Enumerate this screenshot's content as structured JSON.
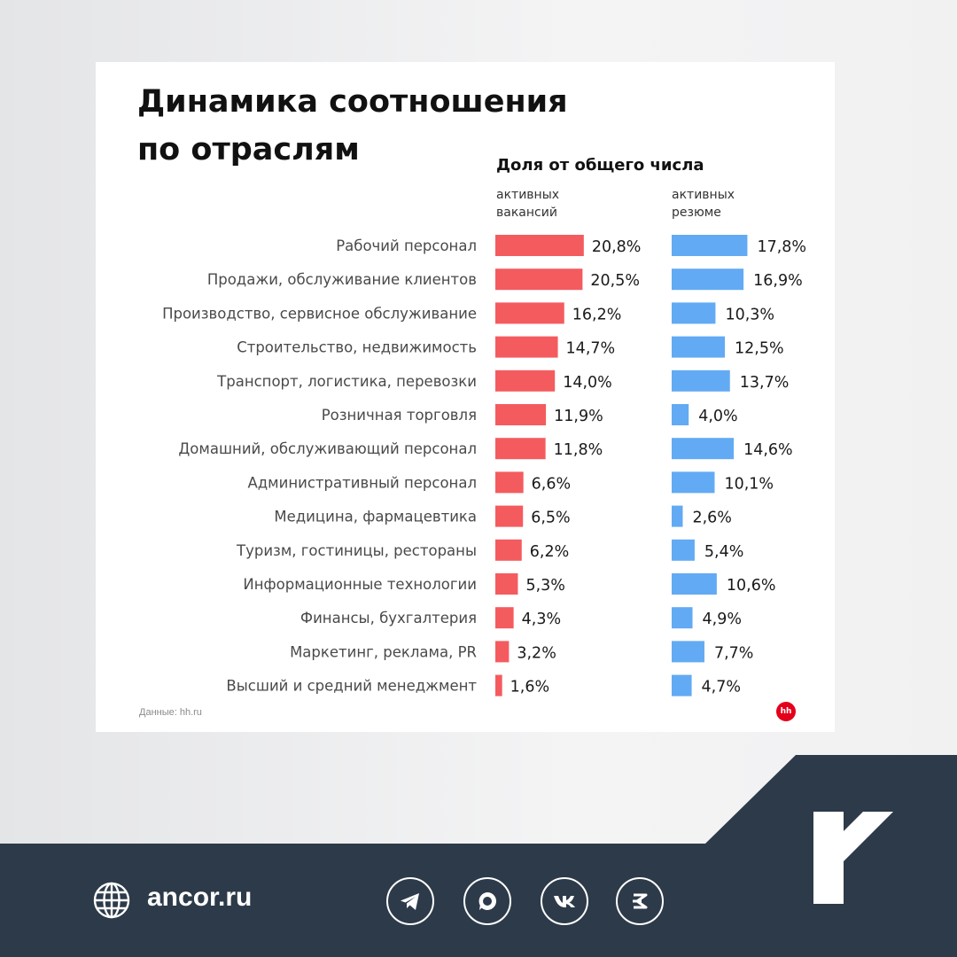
{
  "title_lines": [
    "Динамика соотношения",
    "по отраслям"
  ],
  "subtitle": "Доля от общего числа",
  "columns": {
    "vacancies_label": [
      "активных",
      "вакансий"
    ],
    "resumes_label": [
      "активных",
      "резюме"
    ]
  },
  "source": "Данные: hh.ru",
  "hh_logo_text": "hh",
  "colors": {
    "vacancies": "#f45b5f",
    "resumes": "#62aaf4",
    "footer": "#2d3a49"
  },
  "chart_data": {
    "type": "bar",
    "orientation": "horizontal",
    "categories": [
      "Рабочий персонал",
      "Продажи, обслуживание клиентов",
      "Производство, сервисное обслуживание",
      "Строительство, недвижимость",
      "Транспорт, логистика, перевозки",
      "Розничная торговля",
      "Домашний, обслуживающий персонал",
      "Административный персонал",
      "Медицина, фармацевтика",
      "Туризм, гостиницы, рестораны",
      "Информационные технологии",
      "Финансы, бухгалтерия",
      "Маркетинг, реклама, PR",
      "Высший и средний менеджмент"
    ],
    "series": [
      {
        "name": "активных вакансий",
        "values": [
          20.8,
          20.5,
          16.2,
          14.7,
          14.0,
          11.9,
          11.8,
          6.6,
          6.5,
          6.2,
          5.3,
          4.3,
          3.2,
          1.6
        ],
        "labels": [
          "20,8%",
          "20,5%",
          "16,2%",
          "14,7%",
          "14,0%",
          "11,9%",
          "11,8%",
          "6,6%",
          "6,5%",
          "6,2%",
          "5,3%",
          "4,3%",
          "3,2%",
          "1,6%"
        ]
      },
      {
        "name": "активных резюме",
        "values": [
          17.8,
          16.9,
          10.3,
          12.5,
          13.7,
          4.0,
          14.6,
          10.1,
          2.6,
          5.4,
          10.6,
          4.9,
          7.7,
          4.7
        ],
        "labels": [
          "17,8%",
          "16,9%",
          "10,3%",
          "12,5%",
          "13,7%",
          "4,0%",
          "14,6%",
          "10,1%",
          "2,6%",
          "5,4%",
          "10,6%",
          "4,9%",
          "7,7%",
          "4,7%"
        ]
      }
    ],
    "unit": "%",
    "grid": false
  },
  "footer": {
    "site": "ancor.ru",
    "social_icons": [
      "telegram-icon",
      "max-messenger-icon",
      "vk-icon",
      "zen-icon"
    ]
  }
}
